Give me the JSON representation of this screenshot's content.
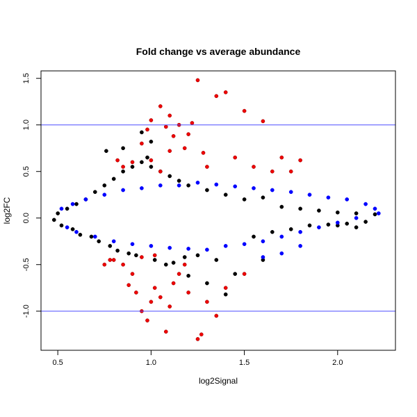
{
  "chart_data": {
    "type": "scatter",
    "title": "Fold change vs average abundance",
    "xlabel": "log2Signal",
    "ylabel": "log2FC",
    "xlim": [
      0.41,
      2.31
    ],
    "ylim": [
      -1.42,
      1.58
    ],
    "x_ticks": [
      0.5,
      1.0,
      1.5,
      2.0
    ],
    "x_tick_labels": [
      "0.5",
      "1.0",
      "1.5",
      "2.0"
    ],
    "y_ticks": [
      -1.0,
      -0.5,
      0.0,
      0.5,
      1.0,
      1.5
    ],
    "y_tick_labels": [
      "-1.0",
      "-0.5",
      "0.0",
      "0.5",
      "1.0",
      "1.5"
    ],
    "grid": false,
    "reference_lines": [
      {
        "axis": "y",
        "value": 1.0,
        "color": "#4d4dff"
      },
      {
        "axis": "y",
        "value": -1.0,
        "color": "#4d4dff"
      }
    ],
    "series": [
      {
        "color": "#000000",
        "points": [
          [
            0.48,
            -0.02
          ],
          [
            0.5,
            0.05
          ],
          [
            0.52,
            -0.08
          ],
          [
            0.55,
            0.1
          ],
          [
            0.58,
            -0.12
          ],
          [
            0.6,
            0.15
          ],
          [
            0.62,
            -0.18
          ],
          [
            0.65,
            0.2
          ],
          [
            0.68,
            -0.2
          ],
          [
            0.7,
            0.28
          ],
          [
            0.72,
            -0.25
          ],
          [
            0.75,
            0.35
          ],
          [
            0.78,
            -0.3
          ],
          [
            0.8,
            0.42
          ],
          [
            0.82,
            -0.35
          ],
          [
            0.85,
            0.5
          ],
          [
            0.88,
            -0.38
          ],
          [
            0.9,
            0.55
          ],
          [
            0.92,
            -0.4
          ],
          [
            0.95,
            0.6
          ],
          [
            0.98,
            0.65
          ],
          [
            1.0,
            0.55
          ],
          [
            1.02,
            -0.45
          ],
          [
            1.05,
            0.5
          ],
          [
            1.08,
            -0.5
          ],
          [
            1.1,
            0.45
          ],
          [
            1.12,
            -0.48
          ],
          [
            1.15,
            0.4
          ],
          [
            1.18,
            -0.42
          ],
          [
            1.2,
            0.35
          ],
          [
            1.25,
            -0.4
          ],
          [
            1.3,
            0.3
          ],
          [
            1.35,
            -0.45
          ],
          [
            1.4,
            0.25
          ],
          [
            1.45,
            -0.6
          ],
          [
            1.5,
            0.2
          ],
          [
            1.55,
            -0.2
          ],
          [
            1.6,
            0.22
          ],
          [
            1.65,
            -0.15
          ],
          [
            1.7,
            0.12
          ],
          [
            1.75,
            -0.12
          ],
          [
            1.8,
            0.1
          ],
          [
            1.85,
            -0.08
          ],
          [
            1.9,
            0.08
          ],
          [
            1.95,
            -0.07
          ],
          [
            2.0,
            0.06
          ],
          [
            2.05,
            -0.06
          ],
          [
            2.1,
            0.05
          ],
          [
            2.15,
            -0.04
          ],
          [
            2.2,
            0.04
          ],
          [
            1.4,
            -0.82
          ],
          [
            0.76,
            0.72
          ],
          [
            0.85,
            0.75
          ],
          [
            1.0,
            0.82
          ],
          [
            0.95,
            0.92
          ],
          [
            1.2,
            -0.62
          ],
          [
            1.3,
            -0.7
          ],
          [
            1.6,
            -0.45
          ],
          [
            2.0,
            -0.08
          ],
          [
            2.1,
            -0.1
          ]
        ]
      },
      {
        "color": "#0000ff",
        "points": [
          [
            0.52,
            0.1
          ],
          [
            0.55,
            -0.1
          ],
          [
            0.58,
            0.15
          ],
          [
            0.6,
            -0.15
          ],
          [
            0.65,
            0.2
          ],
          [
            0.7,
            -0.2
          ],
          [
            0.75,
            0.25
          ],
          [
            0.8,
            -0.25
          ],
          [
            0.85,
            0.3
          ],
          [
            0.9,
            -0.28
          ],
          [
            0.95,
            0.32
          ],
          [
            1.0,
            -0.3
          ],
          [
            1.05,
            0.35
          ],
          [
            1.1,
            -0.32
          ],
          [
            1.15,
            0.35
          ],
          [
            1.2,
            -0.33
          ],
          [
            1.25,
            0.38
          ],
          [
            1.3,
            -0.34
          ],
          [
            1.35,
            0.36
          ],
          [
            1.4,
            -0.3
          ],
          [
            1.45,
            0.34
          ],
          [
            1.5,
            -0.28
          ],
          [
            1.55,
            0.32
          ],
          [
            1.6,
            -0.25
          ],
          [
            1.65,
            0.3
          ],
          [
            1.7,
            -0.2
          ],
          [
            1.75,
            0.28
          ],
          [
            1.8,
            -0.15
          ],
          [
            1.85,
            0.25
          ],
          [
            1.9,
            -0.1
          ],
          [
            1.95,
            0.22
          ],
          [
            2.0,
            -0.05
          ],
          [
            2.05,
            0.2
          ],
          [
            2.1,
            0.0
          ],
          [
            2.15,
            0.15
          ],
          [
            2.2,
            0.1
          ],
          [
            2.22,
            0.05
          ],
          [
            1.6,
            -0.42
          ],
          [
            1.7,
            -0.38
          ],
          [
            1.8,
            -0.3
          ]
        ]
      },
      {
        "color": "#ee0000",
        "points": [
          [
            0.82,
            0.62
          ],
          [
            0.85,
            0.55
          ],
          [
            0.9,
            0.6
          ],
          [
            0.95,
            0.8
          ],
          [
            0.98,
            0.95
          ],
          [
            1.0,
            1.05
          ],
          [
            1.05,
            1.2
          ],
          [
            1.08,
            0.98
          ],
          [
            1.1,
            1.1
          ],
          [
            1.12,
            0.88
          ],
          [
            1.15,
            1.0
          ],
          [
            1.18,
            0.75
          ],
          [
            1.2,
            0.9
          ],
          [
            1.22,
            1.02
          ],
          [
            1.25,
            1.48
          ],
          [
            1.28,
            0.7
          ],
          [
            1.3,
            0.55
          ],
          [
            1.35,
            1.31
          ],
          [
            1.4,
            1.35
          ],
          [
            1.45,
            0.65
          ],
          [
            1.5,
            1.15
          ],
          [
            1.55,
            0.55
          ],
          [
            1.6,
            1.04
          ],
          [
            1.65,
            0.5
          ],
          [
            1.7,
            0.65
          ],
          [
            1.75,
            0.5
          ],
          [
            1.8,
            0.62
          ],
          [
            1.0,
            0.62
          ],
          [
            1.05,
            0.5
          ],
          [
            1.1,
            0.72
          ],
          [
            0.8,
            -0.45
          ],
          [
            0.85,
            -0.5
          ],
          [
            0.9,
            -0.6
          ],
          [
            0.92,
            -0.8
          ],
          [
            0.95,
            -1.0
          ],
          [
            0.98,
            -1.1
          ],
          [
            1.0,
            -0.9
          ],
          [
            1.02,
            -0.75
          ],
          [
            1.05,
            -0.85
          ],
          [
            1.08,
            -1.22
          ],
          [
            1.1,
            -0.95
          ],
          [
            1.12,
            -0.7
          ],
          [
            1.15,
            -0.6
          ],
          [
            1.2,
            -0.8
          ],
          [
            1.25,
            -1.3
          ],
          [
            1.27,
            -1.25
          ],
          [
            1.3,
            -0.9
          ],
          [
            1.35,
            -1.05
          ],
          [
            1.4,
            -0.75
          ],
          [
            1.5,
            -0.6
          ],
          [
            0.75,
            -0.5
          ],
          [
            0.78,
            -0.45
          ],
          [
            0.88,
            -0.72
          ],
          [
            1.18,
            -0.5
          ],
          [
            1.02,
            -0.4
          ],
          [
            0.95,
            -0.42
          ]
        ]
      }
    ]
  }
}
